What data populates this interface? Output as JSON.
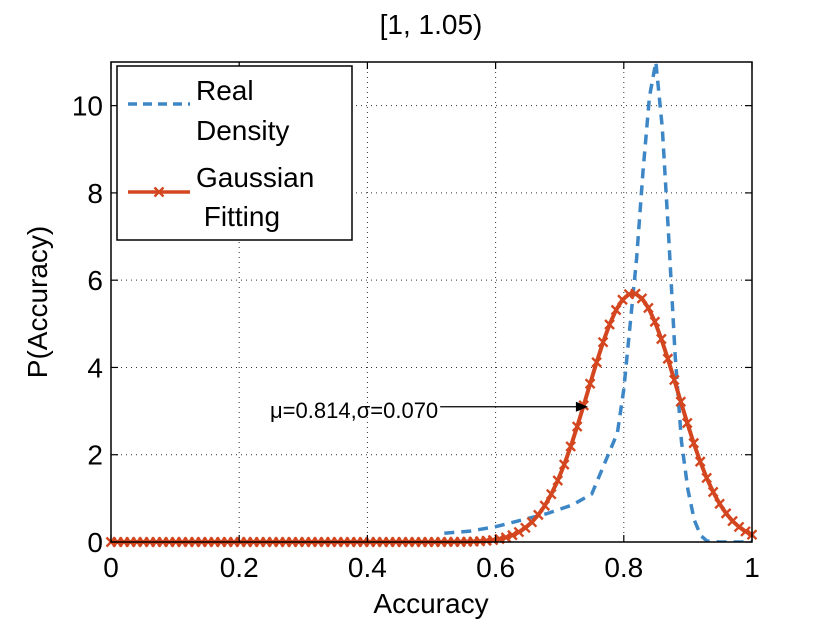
{
  "chart_data": {
    "type": "line",
    "title": "[1, 1.05)",
    "xlabel": "Accuracy",
    "ylabel": "P(Accuracy)",
    "xlim": [
      0,
      1
    ],
    "ylim": [
      0,
      11
    ],
    "xticks": [
      0,
      0.2,
      0.4,
      0.6,
      0.8,
      1
    ],
    "xtick_labels": [
      "0",
      "0.2",
      "0.4",
      "0.6",
      "0.8",
      "1"
    ],
    "yticks": [
      0,
      2,
      4,
      6,
      8,
      10
    ],
    "ytick_labels": [
      "0",
      "2",
      "4",
      "6",
      "8",
      "10"
    ],
    "grid": true,
    "legend_position": "top-left",
    "legend": [
      {
        "line1": "Real",
        "line2": "Density"
      },
      {
        "line1": "Gaussian",
        "line2": " Fitting"
      }
    ],
    "annotation": {
      "text": "μ=0.814,σ=0.070",
      "target_x": 0.744,
      "target_y": 3.1
    },
    "series": [
      {
        "name": "Real Density",
        "style": "dashed",
        "color": "#3d87c6",
        "x": [
          0.52,
          0.56,
          0.6,
          0.64,
          0.68,
          0.72,
          0.75,
          0.77,
          0.79,
          0.8,
          0.81,
          0.82,
          0.83,
          0.84,
          0.85,
          0.86,
          0.87,
          0.88,
          0.89,
          0.9,
          0.91,
          0.92,
          0.93,
          0.95,
          0.98,
          1.0
        ],
        "values": [
          0.2,
          0.25,
          0.35,
          0.5,
          0.65,
          0.85,
          1.1,
          1.8,
          2.5,
          3.5,
          5.0,
          6.5,
          8.5,
          10.2,
          11.0,
          9.5,
          7.0,
          4.3,
          2.3,
          1.2,
          0.5,
          0.15,
          0.02,
          0.0,
          0.0,
          0.0
        ]
      },
      {
        "name": "Gaussian Fitting",
        "style": "solid-x-markers",
        "color": "#d3461f",
        "mu": 0.814,
        "sigma": 0.07,
        "n_points": 100
      }
    ]
  }
}
